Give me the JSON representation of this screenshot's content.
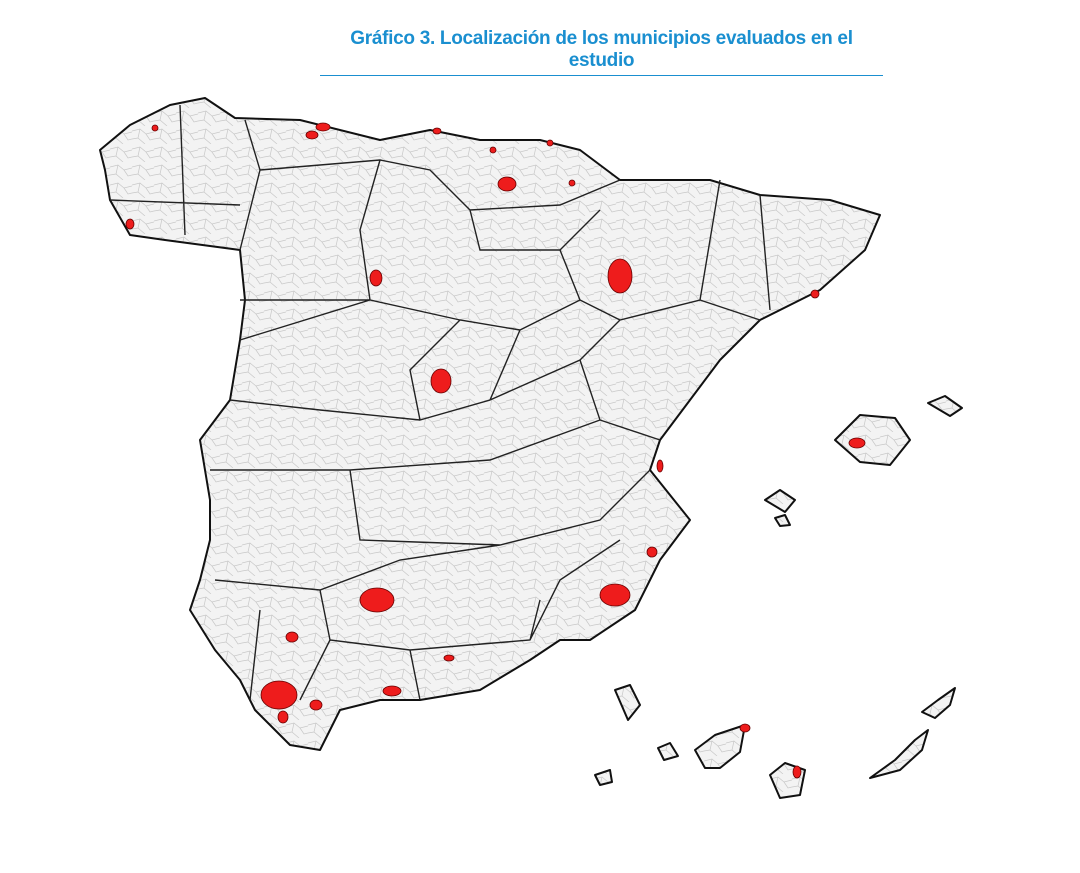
{
  "title": "Gráfico 3. Localización de los municipios evaluados en el estudio"
}
